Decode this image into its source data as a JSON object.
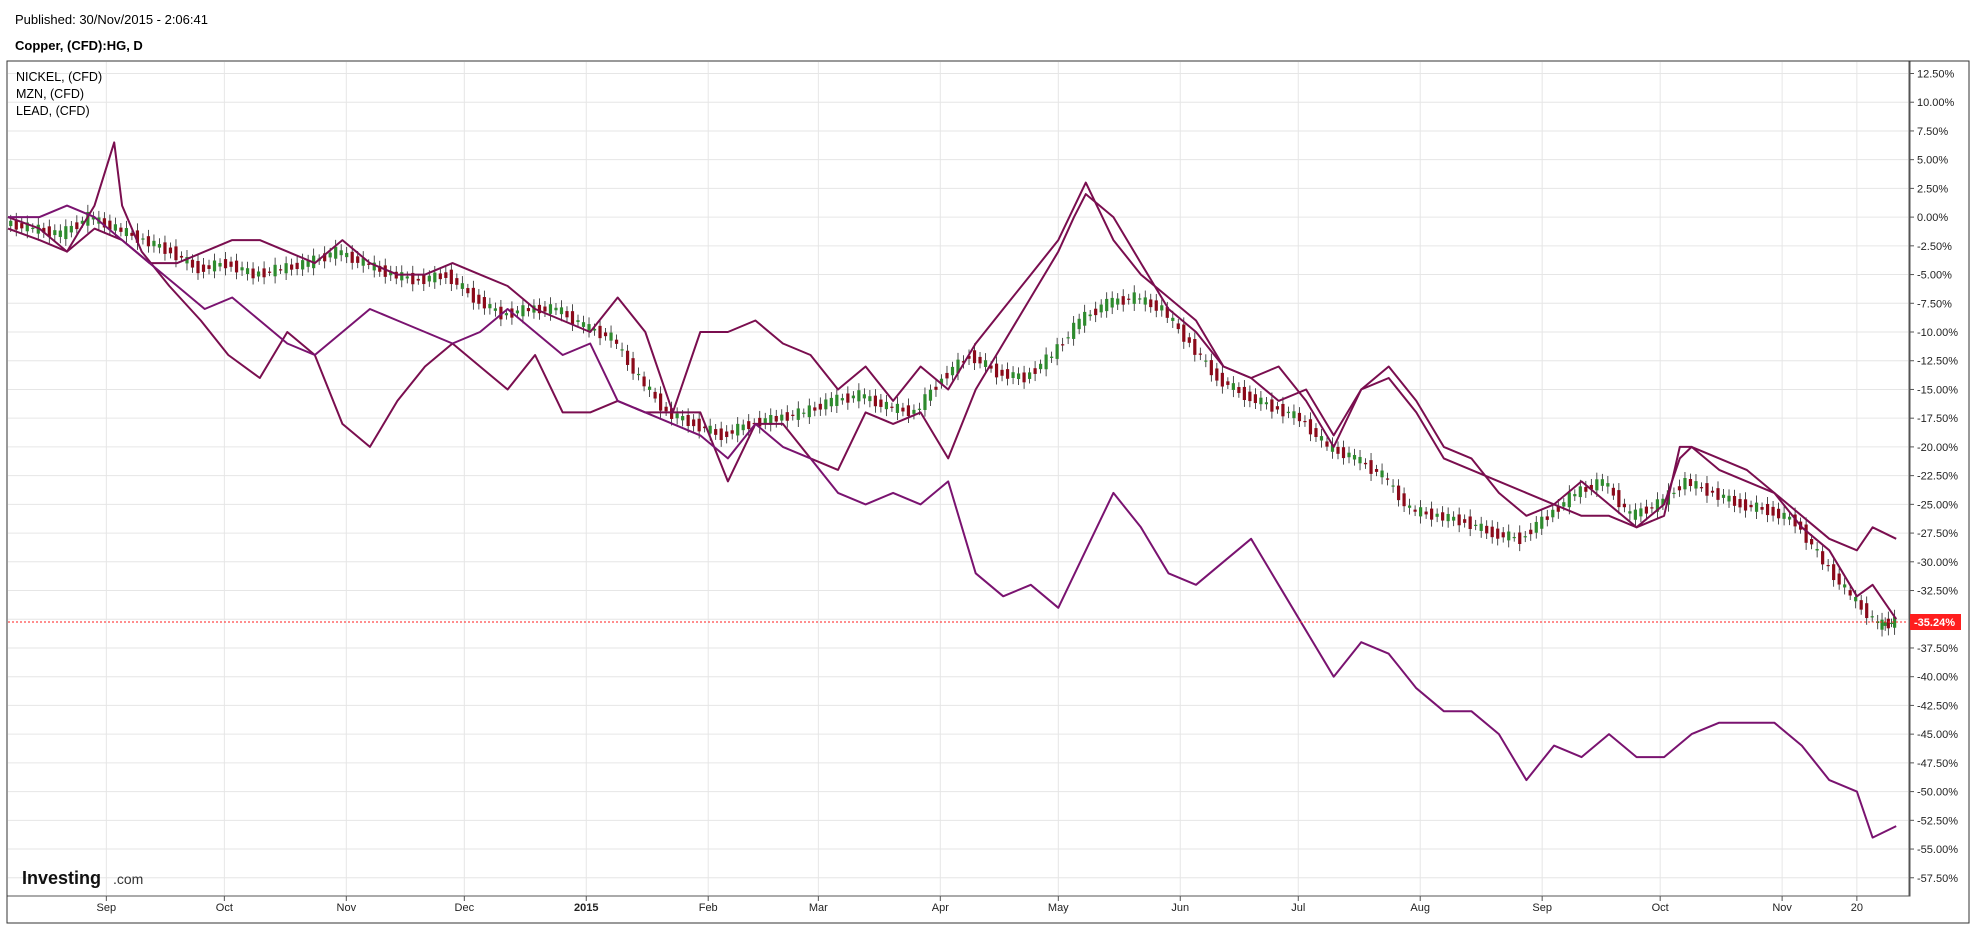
{
  "header": {
    "published": "Published: 30/Nov/2015 - 2:06:41",
    "title": "Copper, (CFD):HG, D"
  },
  "logo": {
    "brand": "Investing",
    "suffix": ".com"
  },
  "colors": {
    "series_line": "#7a0e4f",
    "lead_line": "#7a1370",
    "candle_up": "#2e8b2e",
    "candle_down": "#8b0a1a",
    "current_marker": "#ff1e1e",
    "grid": "#e6e6e6"
  },
  "chart_data": {
    "type": "line",
    "subtype": "percent-comparison",
    "title": "Copper, (CFD):HG, D",
    "xlabel": "",
    "ylabel": "",
    "ylim": [
      -59,
      13.5
    ],
    "y_ticks": [
      12.5,
      10,
      7.5,
      5,
      2.5,
      0,
      -2.5,
      -5,
      -7.5,
      -10,
      -12.5,
      -15,
      -17.5,
      -20,
      -22.5,
      -25,
      -27.5,
      -30,
      -32.5,
      -35,
      -37.5,
      -40,
      -42.5,
      -45,
      -47.5,
      -50,
      -52.5,
      -55,
      -57.5
    ],
    "y_tick_labels": [
      "12.50%",
      "10.00%",
      "7.50%",
      "5.00%",
      "2.50%",
      "0.00%",
      "-2.50%",
      "-5.00%",
      "-7.50%",
      "-10.00%",
      "-12.50%",
      "-15.00%",
      "-17.50%",
      "-20.00%",
      "-22.50%",
      "-25.00%",
      "-27.50%",
      "-30.00%",
      "-32.50%",
      "-35.00%",
      "-37.50%",
      "-40.00%",
      "-42.50%",
      "-45.00%",
      "-47.50%",
      "-50.00%",
      "-52.50%",
      "-55.00%",
      "-57.50%"
    ],
    "x_ticks": [
      {
        "date": "2014-09-01",
        "label": "Sep",
        "bold": false
      },
      {
        "date": "2014-10-01",
        "label": "Oct",
        "bold": false
      },
      {
        "date": "2014-11-01",
        "label": "Nov",
        "bold": false
      },
      {
        "date": "2014-12-01",
        "label": "Dec",
        "bold": false
      },
      {
        "date": "2015-01-01",
        "label": "2015",
        "bold": true
      },
      {
        "date": "2015-02-01",
        "label": "Feb",
        "bold": false
      },
      {
        "date": "2015-03-01",
        "label": "Mar",
        "bold": false
      },
      {
        "date": "2015-04-01",
        "label": "Apr",
        "bold": false
      },
      {
        "date": "2015-05-01",
        "label": "May",
        "bold": false
      },
      {
        "date": "2015-06-01",
        "label": "Jun",
        "bold": false
      },
      {
        "date": "2015-07-01",
        "label": "Jul",
        "bold": false
      },
      {
        "date": "2015-08-01",
        "label": "Aug",
        "bold": false
      },
      {
        "date": "2015-09-01",
        "label": "Sep",
        "bold": false
      },
      {
        "date": "2015-10-01",
        "label": "Oct",
        "bold": false
      },
      {
        "date": "2015-11-01",
        "label": "Nov",
        "bold": false
      },
      {
        "date": "2015-11-20",
        "label": "20",
        "bold": false
      }
    ],
    "xlim": [
      "2014-08-07",
      "2015-12-03"
    ],
    "current_value": -35.24,
    "current_label": "-35.24%",
    "grid": true,
    "legend_placement": "top-left",
    "legend": [
      "NICKEL,  (CFD)",
      "MZN,  (CFD)",
      "LEAD,  (CFD)"
    ],
    "series": [
      {
        "name": "NICKEL,  (CFD)",
        "type": "line",
        "x": [
          "2014-08-07",
          "2014-08-15",
          "2014-08-22",
          "2014-08-29",
          "2014-09-03",
          "2014-09-05",
          "2014-09-10",
          "2014-09-17",
          "2014-09-25",
          "2014-10-02",
          "2014-10-10",
          "2014-10-17",
          "2014-10-24",
          "2014-10-31",
          "2014-11-07",
          "2014-11-14",
          "2014-11-21",
          "2014-11-28",
          "2014-12-05",
          "2014-12-12",
          "2014-12-19",
          "2014-12-26",
          "2015-01-02",
          "2015-01-09",
          "2015-01-16",
          "2015-01-23",
          "2015-01-30",
          "2015-02-06",
          "2015-02-13",
          "2015-02-20",
          "2015-02-27",
          "2015-03-06",
          "2015-03-13",
          "2015-03-20",
          "2015-03-27",
          "2015-04-03",
          "2015-04-10",
          "2015-04-17",
          "2015-04-24",
          "2015-05-01",
          "2015-05-05",
          "2015-05-08",
          "2015-05-15",
          "2015-05-22",
          "2015-05-29",
          "2015-06-05",
          "2015-06-12",
          "2015-06-19",
          "2015-06-26",
          "2015-07-03",
          "2015-07-10",
          "2015-07-17",
          "2015-07-24",
          "2015-07-31",
          "2015-08-07",
          "2015-08-14",
          "2015-08-21",
          "2015-08-28",
          "2015-09-04",
          "2015-09-11",
          "2015-09-18",
          "2015-09-25",
          "2015-10-02",
          "2015-10-06",
          "2015-10-09",
          "2015-10-16",
          "2015-10-23",
          "2015-10-30",
          "2015-11-06",
          "2015-11-13",
          "2015-11-20",
          "2015-11-24",
          "2015-11-30"
        ],
        "values": [
          0,
          -1,
          -3,
          1,
          6.5,
          1,
          -3,
          -6,
          -9,
          -12,
          -14,
          -10,
          -12,
          -18,
          -20,
          -16,
          -13,
          -11,
          -13,
          -15,
          -12,
          -17,
          -17,
          -16,
          -17,
          -17,
          -17,
          -23,
          -18,
          -18,
          -21,
          -22,
          -17,
          -18,
          -17,
          -21,
          -15,
          -11,
          -7,
          -3,
          0,
          2,
          0,
          -4,
          -8,
          -10,
          -13,
          -14,
          -13,
          -16,
          -20,
          -15,
          -14,
          -17,
          -21,
          -22,
          -23,
          -24,
          -25,
          -26,
          -26,
          -27,
          -25,
          -21,
          -20,
          -21,
          -22,
          -24,
          -27,
          -29,
          -33,
          -32,
          -35
        ]
      },
      {
        "name": "MZN,  (CFD)",
        "type": "line",
        "x": [
          "2014-08-07",
          "2014-08-15",
          "2014-08-22",
          "2014-08-29",
          "2014-09-05",
          "2014-09-12",
          "2014-09-19",
          "2014-09-26",
          "2014-10-03",
          "2014-10-10",
          "2014-10-17",
          "2014-10-24",
          "2014-10-31",
          "2014-11-07",
          "2014-11-14",
          "2014-11-21",
          "2014-11-28",
          "2014-12-05",
          "2014-12-12",
          "2014-12-19",
          "2014-12-26",
          "2015-01-02",
          "2015-01-09",
          "2015-01-16",
          "2015-01-23",
          "2015-01-30",
          "2015-02-06",
          "2015-02-13",
          "2015-02-20",
          "2015-02-27",
          "2015-03-06",
          "2015-03-13",
          "2015-03-20",
          "2015-03-27",
          "2015-04-03",
          "2015-04-10",
          "2015-04-17",
          "2015-04-24",
          "2015-05-01",
          "2015-05-08",
          "2015-05-15",
          "2015-05-22",
          "2015-05-29",
          "2015-06-05",
          "2015-06-12",
          "2015-06-19",
          "2015-06-26",
          "2015-07-03",
          "2015-07-10",
          "2015-07-17",
          "2015-07-24",
          "2015-07-31",
          "2015-08-07",
          "2015-08-14",
          "2015-08-21",
          "2015-08-28",
          "2015-09-04",
          "2015-09-11",
          "2015-09-18",
          "2015-09-25",
          "2015-10-02",
          "2015-10-06",
          "2015-10-09",
          "2015-10-16",
          "2015-10-23",
          "2015-10-30",
          "2015-11-06",
          "2015-11-13",
          "2015-11-20",
          "2015-11-24",
          "2015-11-30"
        ],
        "values": [
          -1,
          -2,
          -3,
          -1,
          -2,
          -4,
          -4,
          -3,
          -2,
          -2,
          -3,
          -4,
          -2,
          -4,
          -5,
          -5,
          -4,
          -5,
          -6,
          -8,
          -9,
          -10,
          -7,
          -10,
          -17,
          -10,
          -10,
          -9,
          -11,
          -12,
          -15,
          -13,
          -16,
          -13,
          -15,
          -11,
          -8,
          -5,
          -2,
          3,
          -2,
          -5,
          -7,
          -9,
          -13,
          -14,
          -16,
          -15,
          -19,
          -15,
          -13,
          -16,
          -20,
          -21,
          -24,
          -26,
          -25,
          -23,
          -25,
          -27,
          -26,
          -20,
          -20,
          -22,
          -23,
          -24,
          -26,
          -28,
          -29,
          -27,
          -28
        ]
      },
      {
        "name": "LEAD,  (CFD)",
        "type": "line",
        "x": [
          "2014-08-07",
          "2014-08-15",
          "2014-08-22",
          "2014-08-29",
          "2014-09-05",
          "2014-09-12",
          "2014-09-19",
          "2014-09-26",
          "2014-10-03",
          "2014-10-10",
          "2014-10-17",
          "2014-10-24",
          "2014-10-31",
          "2014-11-07",
          "2014-11-14",
          "2014-11-21",
          "2014-11-28",
          "2014-12-05",
          "2014-12-12",
          "2014-12-19",
          "2014-12-26",
          "2015-01-02",
          "2015-01-09",
          "2015-01-16",
          "2015-01-23",
          "2015-01-30",
          "2015-02-06",
          "2015-02-13",
          "2015-02-20",
          "2015-02-27",
          "2015-03-06",
          "2015-03-13",
          "2015-03-20",
          "2015-03-27",
          "2015-04-03",
          "2015-04-10",
          "2015-04-17",
          "2015-04-24",
          "2015-05-01",
          "2015-05-08",
          "2015-05-15",
          "2015-05-22",
          "2015-05-29",
          "2015-06-05",
          "2015-06-12",
          "2015-06-19",
          "2015-06-26",
          "2015-07-03",
          "2015-07-10",
          "2015-07-17",
          "2015-07-24",
          "2015-07-31",
          "2015-08-07",
          "2015-08-14",
          "2015-08-21",
          "2015-08-28",
          "2015-09-04",
          "2015-09-11",
          "2015-09-18",
          "2015-09-25",
          "2015-10-02",
          "2015-10-09",
          "2015-10-16",
          "2015-10-23",
          "2015-10-30",
          "2015-11-06",
          "2015-11-13",
          "2015-11-20",
          "2015-11-24",
          "2015-11-30"
        ],
        "values": [
          0,
          0,
          1,
          0,
          -2,
          -4,
          -6,
          -8,
          -7,
          -9,
          -11,
          -12,
          -10,
          -8,
          -9,
          -10,
          -11,
          -10,
          -8,
          -10,
          -12,
          -11,
          -16,
          -17,
          -18,
          -19,
          -21,
          -18,
          -20,
          -21,
          -24,
          -25,
          -24,
          -25,
          -23,
          -31,
          -33,
          -32,
          -34,
          -29,
          -24,
          -27,
          -31,
          -32,
          -30,
          -28,
          -32,
          -36,
          -40,
          -37,
          -38,
          -41,
          -43,
          -43,
          -45,
          -49,
          -46,
          -47,
          -45,
          -47,
          -47,
          -45,
          -44,
          -44,
          -44,
          -46,
          -49,
          -50,
          -54,
          -53
        ]
      },
      {
        "name": "Copper, (CFD):HG, D",
        "type": "candlestick",
        "x": [
          "2014-08-07",
          "2014-08-14",
          "2014-08-21",
          "2014-08-28",
          "2014-09-04",
          "2014-09-11",
          "2014-09-18",
          "2014-09-25",
          "2014-10-02",
          "2014-10-09",
          "2014-10-16",
          "2014-10-23",
          "2014-10-30",
          "2014-11-06",
          "2014-11-13",
          "2014-11-20",
          "2014-11-27",
          "2014-12-04",
          "2014-12-11",
          "2014-12-18",
          "2014-12-25",
          "2015-01-01",
          "2015-01-08",
          "2015-01-15",
          "2015-01-22",
          "2015-01-29",
          "2015-02-05",
          "2015-02-12",
          "2015-02-19",
          "2015-02-26",
          "2015-03-05",
          "2015-03-12",
          "2015-03-19",
          "2015-03-26",
          "2015-04-02",
          "2015-04-09",
          "2015-04-16",
          "2015-04-23",
          "2015-04-30",
          "2015-05-07",
          "2015-05-14",
          "2015-05-21",
          "2015-05-28",
          "2015-06-04",
          "2015-06-11",
          "2015-06-18",
          "2015-06-25",
          "2015-07-02",
          "2015-07-09",
          "2015-07-16",
          "2015-07-23",
          "2015-07-30",
          "2015-08-06",
          "2015-08-13",
          "2015-08-20",
          "2015-08-27",
          "2015-09-03",
          "2015-09-10",
          "2015-09-17",
          "2015-09-24",
          "2015-10-01",
          "2015-10-08",
          "2015-10-15",
          "2015-10-22",
          "2015-10-29",
          "2015-11-05",
          "2015-11-12",
          "2015-11-19",
          "2015-11-26",
          "2015-11-30"
        ],
        "values": [
          -0.5,
          -1,
          -1.5,
          0,
          -1,
          -2,
          -3,
          -4.5,
          -4,
          -5,
          -4.5,
          -4,
          -3,
          -4,
          -5,
          -5.5,
          -5,
          -7,
          -8.5,
          -8,
          -8,
          -9.5,
          -10.5,
          -14,
          -17,
          -18,
          -19,
          -18,
          -17.5,
          -17,
          -16,
          -15.5,
          -16.5,
          -17,
          -14,
          -12,
          -13.5,
          -14,
          -12,
          -9,
          -7.5,
          -7,
          -8,
          -11,
          -14,
          -15.5,
          -16.5,
          -17.5,
          -20,
          -21,
          -22.5,
          -25.5,
          -26,
          -26.5,
          -27.5,
          -28,
          -26,
          -24,
          -23,
          -26,
          -25,
          -23,
          -24,
          -25,
          -25.5,
          -26.5,
          -30,
          -33,
          -35.5,
          -35.24
        ]
      }
    ]
  }
}
